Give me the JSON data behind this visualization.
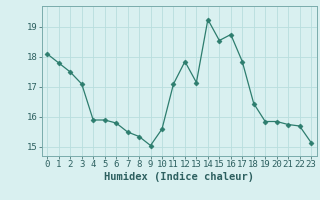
{
  "x": [
    0,
    1,
    2,
    3,
    4,
    5,
    6,
    7,
    8,
    9,
    10,
    11,
    12,
    13,
    14,
    15,
    16,
    17,
    18,
    19,
    20,
    21,
    22,
    23
  ],
  "y": [
    18.1,
    17.8,
    17.5,
    17.1,
    15.9,
    15.9,
    15.8,
    15.5,
    15.35,
    15.05,
    15.6,
    17.1,
    17.85,
    17.15,
    19.25,
    18.55,
    18.75,
    17.85,
    16.45,
    15.85,
    15.85,
    15.75,
    15.7,
    15.15
  ],
  "line_color": "#2d7d6e",
  "marker": "D",
  "marker_size": 2.5,
  "bg_color": "#d9f0f0",
  "grid_color": "#b8dede",
  "xlabel": "Humidex (Indice chaleur)",
  "xlabel_fontsize": 7.5,
  "tick_fontsize": 6.5,
  "ylim": [
    14.7,
    19.7
  ],
  "xlim": [
    -0.5,
    23.5
  ],
  "yticks": [
    15,
    16,
    17,
    18,
    19
  ],
  "xticks": [
    0,
    1,
    2,
    3,
    4,
    5,
    6,
    7,
    8,
    9,
    10,
    11,
    12,
    13,
    14,
    15,
    16,
    17,
    18,
    19,
    20,
    21,
    22,
    23
  ]
}
